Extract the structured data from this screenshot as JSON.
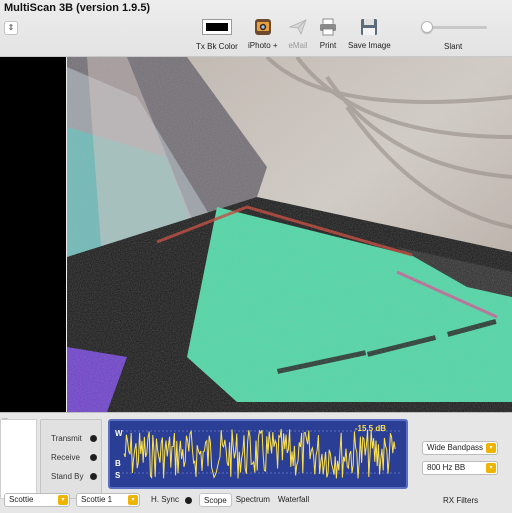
{
  "app": {
    "title": "MultiScan 3B (version 1.9.5)"
  },
  "toolbar": {
    "tx_bk_color_label": "Tx Bk Color",
    "tx_bk_color_value": "#000000",
    "iphoto_label": "iPhoto +",
    "email_label": "eMail",
    "print_label": "Print",
    "save_image_label": "Save Image",
    "slant_label": "Slant",
    "slant_value": 0.0,
    "mode_popup_icon": "updown-arrows-icon"
  },
  "status": {
    "transmit_label": "Transmit",
    "receive_label": "Receive",
    "standby_label": "Stand By"
  },
  "scope": {
    "labels": [
      "W",
      "B",
      "S"
    ],
    "level_label": "-15.5 dB",
    "trace_color": "#ffe34a",
    "background_color": "#2b3e96"
  },
  "filters": {
    "bandpass_value": "Wide Bandpass",
    "bb_value": "800 Hz BB",
    "rx_filters_label": "RX Filters"
  },
  "bottom": {
    "mode_value": "Scottie",
    "submode_value": "Scottie 1",
    "hsync_label": "H. Sync",
    "display_tabs": [
      "Scope",
      "Spectrum",
      "Waterfall"
    ],
    "selected_tab": "Scope",
    "list_dots": "..."
  },
  "colors": {
    "accent": "#f0b400",
    "image_teal": "#49d9a5"
  }
}
